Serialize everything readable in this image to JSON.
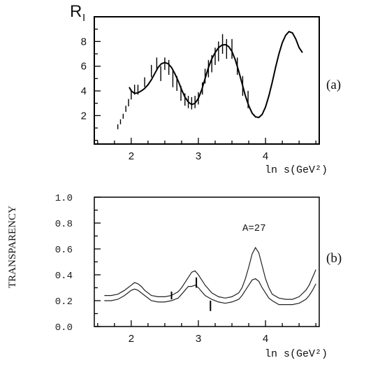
{
  "chart_data": [
    {
      "panel": "(a)",
      "type": "line",
      "ylabel": "R",
      "ylabel_subscript": "I",
      "xlabel": "ln s(GeV²)",
      "xlim": [
        1.45,
        4.8
      ],
      "ylim": [
        -0.3,
        10
      ],
      "x_ticks": [
        2,
        3,
        4
      ],
      "x_tick_labels": [
        "2",
        "3",
        "4"
      ],
      "y_ticks": [
        2,
        4,
        6,
        8
      ],
      "y_tick_labels": [
        "2",
        "4",
        "6",
        "8"
      ],
      "grid": false,
      "series": [
        {
          "kind": "curve",
          "x": [
            1.97,
            2.0,
            2.05,
            2.1,
            2.15,
            2.2,
            2.25,
            2.3,
            2.35,
            2.4,
            2.45,
            2.5,
            2.55,
            2.6,
            2.65,
            2.7,
            2.75,
            2.8,
            2.85,
            2.9,
            2.95,
            3.0,
            3.05,
            3.1,
            3.15,
            3.2,
            3.25,
            3.3,
            3.35,
            3.4,
            3.45,
            3.5,
            3.55,
            3.6,
            3.65,
            3.7,
            3.75,
            3.8,
            3.85,
            3.9,
            3.95,
            4.0,
            4.05,
            4.1,
            4.15,
            4.2,
            4.25,
            4.3,
            4.35,
            4.4,
            4.45,
            4.5,
            4.55
          ],
          "y": [
            4.3,
            4.0,
            3.8,
            3.85,
            4.0,
            4.2,
            4.5,
            4.9,
            5.4,
            5.9,
            6.2,
            6.3,
            6.2,
            5.9,
            5.4,
            4.8,
            4.1,
            3.5,
            3.1,
            2.9,
            3.0,
            3.4,
            4.1,
            5.0,
            5.9,
            6.6,
            7.1,
            7.5,
            7.7,
            7.75,
            7.6,
            7.2,
            6.5,
            5.6,
            4.6,
            3.6,
            2.8,
            2.2,
            1.9,
            1.85,
            2.1,
            2.7,
            3.6,
            4.7,
            5.9,
            7.0,
            7.9,
            8.5,
            8.8,
            8.7,
            8.2,
            7.5,
            7.1
          ]
        },
        {
          "kind": "error_bars",
          "points": [
            {
              "x": 1.8,
              "y": 1.1,
              "err": 0.2
            },
            {
              "x": 1.84,
              "y": 1.5,
              "err": 0.2
            },
            {
              "x": 1.88,
              "y": 1.95,
              "err": 0.2
            },
            {
              "x": 1.92,
              "y": 2.55,
              "err": 0.25
            },
            {
              "x": 1.96,
              "y": 3.05,
              "err": 0.3
            },
            {
              "x": 2.0,
              "y": 3.7,
              "err": 0.4
            },
            {
              "x": 2.05,
              "y": 4.1,
              "err": 0.4
            },
            {
              "x": 2.1,
              "y": 4.1,
              "err": 0.4
            },
            {
              "x": 2.2,
              "y": 4.7,
              "err": 0.4
            },
            {
              "x": 2.3,
              "y": 5.6,
              "err": 0.5
            },
            {
              "x": 2.38,
              "y": 6.2,
              "err": 0.5
            },
            {
              "x": 2.44,
              "y": 5.4,
              "err": 0.6
            },
            {
              "x": 2.5,
              "y": 6.2,
              "err": 0.5
            },
            {
              "x": 2.56,
              "y": 5.9,
              "err": 0.6
            },
            {
              "x": 2.62,
              "y": 5.0,
              "err": 0.7
            },
            {
              "x": 2.68,
              "y": 4.6,
              "err": 0.6
            },
            {
              "x": 2.74,
              "y": 3.8,
              "err": 0.6
            },
            {
              "x": 2.8,
              "y": 3.3,
              "err": 0.5
            },
            {
              "x": 2.85,
              "y": 3.1,
              "err": 0.5
            },
            {
              "x": 2.9,
              "y": 3.0,
              "err": 0.5
            },
            {
              "x": 2.95,
              "y": 3.1,
              "err": 0.5
            },
            {
              "x": 3.0,
              "y": 3.4,
              "err": 0.5
            },
            {
              "x": 3.06,
              "y": 4.2,
              "err": 0.5
            },
            {
              "x": 3.1,
              "y": 5.2,
              "err": 0.6
            },
            {
              "x": 3.15,
              "y": 5.8,
              "err": 0.7
            },
            {
              "x": 3.2,
              "y": 6.2,
              "err": 0.7
            },
            {
              "x": 3.25,
              "y": 6.8,
              "err": 0.7
            },
            {
              "x": 3.3,
              "y": 7.2,
              "err": 0.8
            },
            {
              "x": 3.36,
              "y": 7.8,
              "err": 0.8
            },
            {
              "x": 3.42,
              "y": 7.4,
              "err": 0.8
            },
            {
              "x": 3.5,
              "y": 7.4,
              "err": 0.8
            },
            {
              "x": 3.58,
              "y": 6.0,
              "err": 0.7
            },
            {
              "x": 3.66,
              "y": 4.4,
              "err": 0.8
            },
            {
              "x": 3.74,
              "y": 3.3,
              "err": 0.7
            }
          ]
        }
      ]
    },
    {
      "panel": "(b)",
      "type": "line",
      "ylabel": "TRANSPARENCY",
      "xlabel": "ln s(GeV²)",
      "annotation": "A=27",
      "xlim": [
        1.45,
        4.8
      ],
      "ylim": [
        0.0,
        1.0
      ],
      "x_ticks": [
        2,
        3,
        4
      ],
      "x_tick_labels": [
        "2",
        "3",
        "4"
      ],
      "y_ticks": [
        0.0,
        0.2,
        0.4,
        0.6,
        0.8,
        1.0
      ],
      "y_tick_labels": [
        "0.0",
        "0.2",
        "0.4",
        "0.6",
        "0.8",
        "1.0"
      ],
      "grid": false,
      "series": [
        {
          "kind": "curve",
          "x": [
            1.6,
            1.7,
            1.8,
            1.9,
            1.95,
            2.0,
            2.05,
            2.1,
            2.15,
            2.2,
            2.3,
            2.4,
            2.5,
            2.6,
            2.7,
            2.75,
            2.8,
            2.85,
            2.9,
            2.95,
            3.0,
            3.05,
            3.1,
            3.2,
            3.3,
            3.4,
            3.5,
            3.6,
            3.65,
            3.7,
            3.75,
            3.8,
            3.85,
            3.9,
            3.95,
            4.0,
            4.05,
            4.1,
            4.2,
            4.3,
            4.4,
            4.5,
            4.6,
            4.65,
            4.7,
            4.75
          ],
          "y": [
            0.24,
            0.24,
            0.25,
            0.28,
            0.3,
            0.32,
            0.34,
            0.33,
            0.31,
            0.28,
            0.24,
            0.23,
            0.23,
            0.24,
            0.27,
            0.3,
            0.34,
            0.38,
            0.42,
            0.43,
            0.4,
            0.36,
            0.32,
            0.26,
            0.23,
            0.22,
            0.23,
            0.26,
            0.3,
            0.37,
            0.46,
            0.56,
            0.61,
            0.57,
            0.47,
            0.37,
            0.3,
            0.25,
            0.22,
            0.21,
            0.21,
            0.23,
            0.28,
            0.32,
            0.38,
            0.44
          ]
        },
        {
          "kind": "curve",
          "x": [
            1.6,
            1.7,
            1.8,
            1.9,
            1.95,
            2.0,
            2.05,
            2.1,
            2.15,
            2.2,
            2.3,
            2.4,
            2.5,
            2.6,
            2.7,
            2.75,
            2.8,
            2.85,
            2.9,
            2.95,
            3.0,
            3.05,
            3.1,
            3.2,
            3.3,
            3.4,
            3.5,
            3.6,
            3.65,
            3.7,
            3.75,
            3.8,
            3.85,
            3.9,
            3.95,
            4.0,
            4.05,
            4.1,
            4.2,
            4.3,
            4.4,
            4.5,
            4.6,
            4.65,
            4.7,
            4.75
          ],
          "y": [
            0.2,
            0.2,
            0.21,
            0.24,
            0.26,
            0.28,
            0.29,
            0.28,
            0.26,
            0.24,
            0.2,
            0.19,
            0.19,
            0.2,
            0.22,
            0.25,
            0.28,
            0.31,
            0.31,
            0.32,
            0.3,
            0.27,
            0.24,
            0.21,
            0.19,
            0.18,
            0.19,
            0.21,
            0.24,
            0.28,
            0.32,
            0.36,
            0.37,
            0.35,
            0.3,
            0.26,
            0.22,
            0.2,
            0.17,
            0.17,
            0.17,
            0.18,
            0.21,
            0.24,
            0.28,
            0.33
          ]
        },
        {
          "kind": "error_bars",
          "points": [
            {
              "x": 2.6,
              "y": 0.24,
              "err": 0.03
            },
            {
              "x": 2.97,
              "y": 0.34,
              "err": 0.04
            },
            {
              "x": 3.18,
              "y": 0.16,
              "err": 0.04
            }
          ]
        }
      ]
    }
  ]
}
